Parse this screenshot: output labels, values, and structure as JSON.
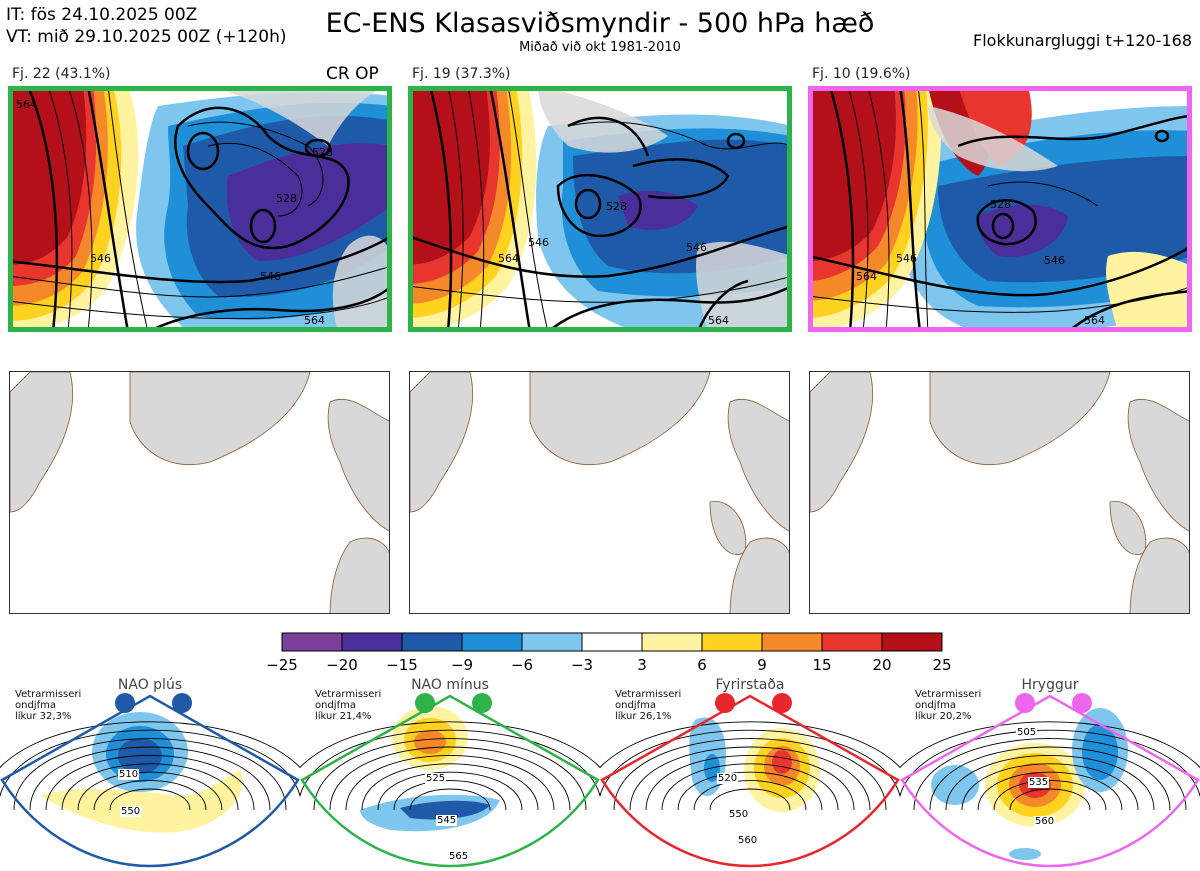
{
  "header": {
    "init_line": "IT: fös 24.10.2025 00Z",
    "valid_line": "VT: mið 29.10.2025 00Z  (+120h)",
    "title": "EC-ENS Klasasviðsmyndir - 500 hPa hæð",
    "subtitle": "Miðað við okt 1981-2010",
    "window": "Flokkunargluggi t+120-168"
  },
  "panels": [
    {
      "label": "Fj. 22 (43.1%)",
      "tag": "CR OP",
      "frame_color": "#2db34a",
      "contours": [
        "564",
        "546",
        "528",
        "546",
        "564",
        "528"
      ]
    },
    {
      "label": "Fj. 19 (37.3%)",
      "tag": "",
      "frame_color": "#2db34a",
      "contours": [
        "546",
        "564",
        "528",
        "546",
        "564"
      ]
    },
    {
      "label": "Fj. 10 (19.6%)",
      "tag": "",
      "frame_color": "#ee66ee",
      "contours": [
        "546",
        "564",
        "528",
        "546",
        "564"
      ]
    }
  ],
  "colorbar": {
    "ticks": [
      "−25",
      "−20",
      "−15",
      "−9",
      "−6",
      "−3",
      "3",
      "6",
      "9",
      "15",
      "20",
      "25"
    ],
    "colors": [
      "#7a3f9a",
      "#4a2f9a",
      "#1f5aa8",
      "#1f8fd8",
      "#7ec6ee",
      "#ffffff",
      "#fff3a0",
      "#ffd21f",
      "#f5892a",
      "#e8362e",
      "#b3101a"
    ]
  },
  "regimes": [
    {
      "name": "NAO plús",
      "note_l1": "Vetrarmisseri",
      "note_l2": "ondjfma",
      "note_l3": "líkur 32,3%",
      "color": "#1f5aa8",
      "labels": [
        "510",
        "550"
      ]
    },
    {
      "name": "NAO mínus",
      "note_l1": "Vetrarmisseri",
      "note_l2": "ondjfma",
      "note_l3": "líkur 21,4%",
      "color": "#2db34a",
      "labels": [
        "525",
        "545",
        "565"
      ]
    },
    {
      "name": "Fyrirstaða",
      "note_l1": "Vetrarmisseri",
      "note_l2": "ondjfma",
      "note_l3": "líkur 26,1%",
      "color": "#e8262e",
      "labels": [
        "520",
        "550",
        "560"
      ]
    },
    {
      "name": "Hryggur",
      "note_l1": "Vetrarmisseri",
      "note_l2": "ondjfma",
      "note_l3": "líkur 20,2%",
      "color": "#ee66ee",
      "labels": [
        "505",
        "535",
        "560"
      ]
    }
  ]
}
